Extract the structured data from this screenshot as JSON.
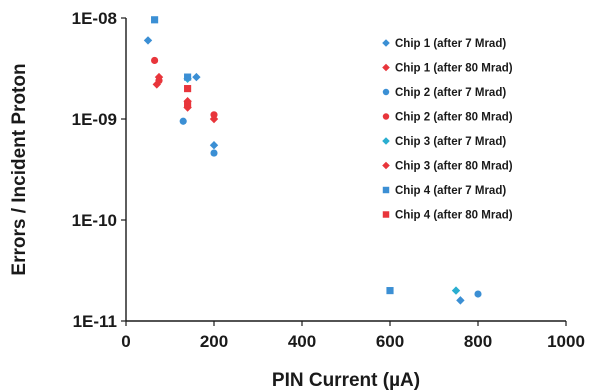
{
  "chart_data": {
    "type": "scatter",
    "title": "",
    "xlabel": "PIN Current (µA)",
    "ylabel": "Errors / Incident Proton",
    "xlim": [
      0,
      1000
    ],
    "ylim": [
      1e-11,
      1e-08
    ],
    "yscale": "log",
    "x_ticks": [
      0,
      200,
      400,
      600,
      800,
      1000
    ],
    "y_ticks": [
      1e-11,
      1e-10,
      1e-09,
      1e-08
    ],
    "x_tick_labels": [
      "0",
      "200",
      "400",
      "600",
      "800",
      "1000"
    ],
    "y_tick_labels": [
      "1E-11",
      "1E-10",
      "1E-09",
      "1E-08"
    ],
    "grid": false,
    "legend_position": "top-right",
    "series": [
      {
        "name": "Chip 1 (after 7 Mrad)",
        "marker": "diamond",
        "color": "#3b8fd4",
        "points": [
          {
            "x": 50,
            "y": 6e-09
          },
          {
            "x": 160,
            "y": 2.6e-09
          },
          {
            "x": 200,
            "y": 5.5e-10
          },
          {
            "x": 760,
            "y": 1.6e-11
          }
        ]
      },
      {
        "name": "Chip 1 (after 80 Mrad)",
        "marker": "diamond",
        "color": "#e8353b",
        "points": [
          {
            "x": 70,
            "y": 2.2e-09
          },
          {
            "x": 140,
            "y": 1.3e-09
          },
          {
            "x": 200,
            "y": 1e-09
          }
        ]
      },
      {
        "name": "Chip 2 (after 7 Mrad)",
        "marker": "circle",
        "color": "#3b8fd4",
        "points": [
          {
            "x": 130,
            "y": 9.5e-10
          },
          {
            "x": 200,
            "y": 4.6e-10
          },
          {
            "x": 800,
            "y": 1.85e-11
          }
        ]
      },
      {
        "name": "Chip 2 (after 80 Mrad)",
        "marker": "circle",
        "color": "#e8353b",
        "points": [
          {
            "x": 65,
            "y": 3.8e-09
          },
          {
            "x": 75,
            "y": 2.4e-09
          },
          {
            "x": 200,
            "y": 1.1e-09
          }
        ]
      },
      {
        "name": "Chip 3 (after 7 Mrad)",
        "marker": "diamond",
        "color": "#2aaed0",
        "points": [
          {
            "x": 140,
            "y": 2.5e-09
          },
          {
            "x": 750,
            "y": 2e-11
          }
        ]
      },
      {
        "name": "Chip 3 (after 80 Mrad)",
        "marker": "diamond",
        "color": "#e8353b",
        "points": [
          {
            "x": 75,
            "y": 2.6e-09
          },
          {
            "x": 140,
            "y": 1.5e-09
          }
        ]
      },
      {
        "name": "Chip 4 (after 7 Mrad)",
        "marker": "square",
        "color": "#3b8fd4",
        "points": [
          {
            "x": 65,
            "y": 9.6e-09
          },
          {
            "x": 140,
            "y": 2.6e-09
          },
          {
            "x": 600,
            "y": 2e-11
          }
        ]
      },
      {
        "name": "Chip 4 (after 80 Mrad)",
        "marker": "square",
        "color": "#e8353b",
        "points": [
          {
            "x": 140,
            "y": 2e-09
          },
          {
            "x": 140,
            "y": 1.4e-09
          }
        ]
      }
    ]
  }
}
